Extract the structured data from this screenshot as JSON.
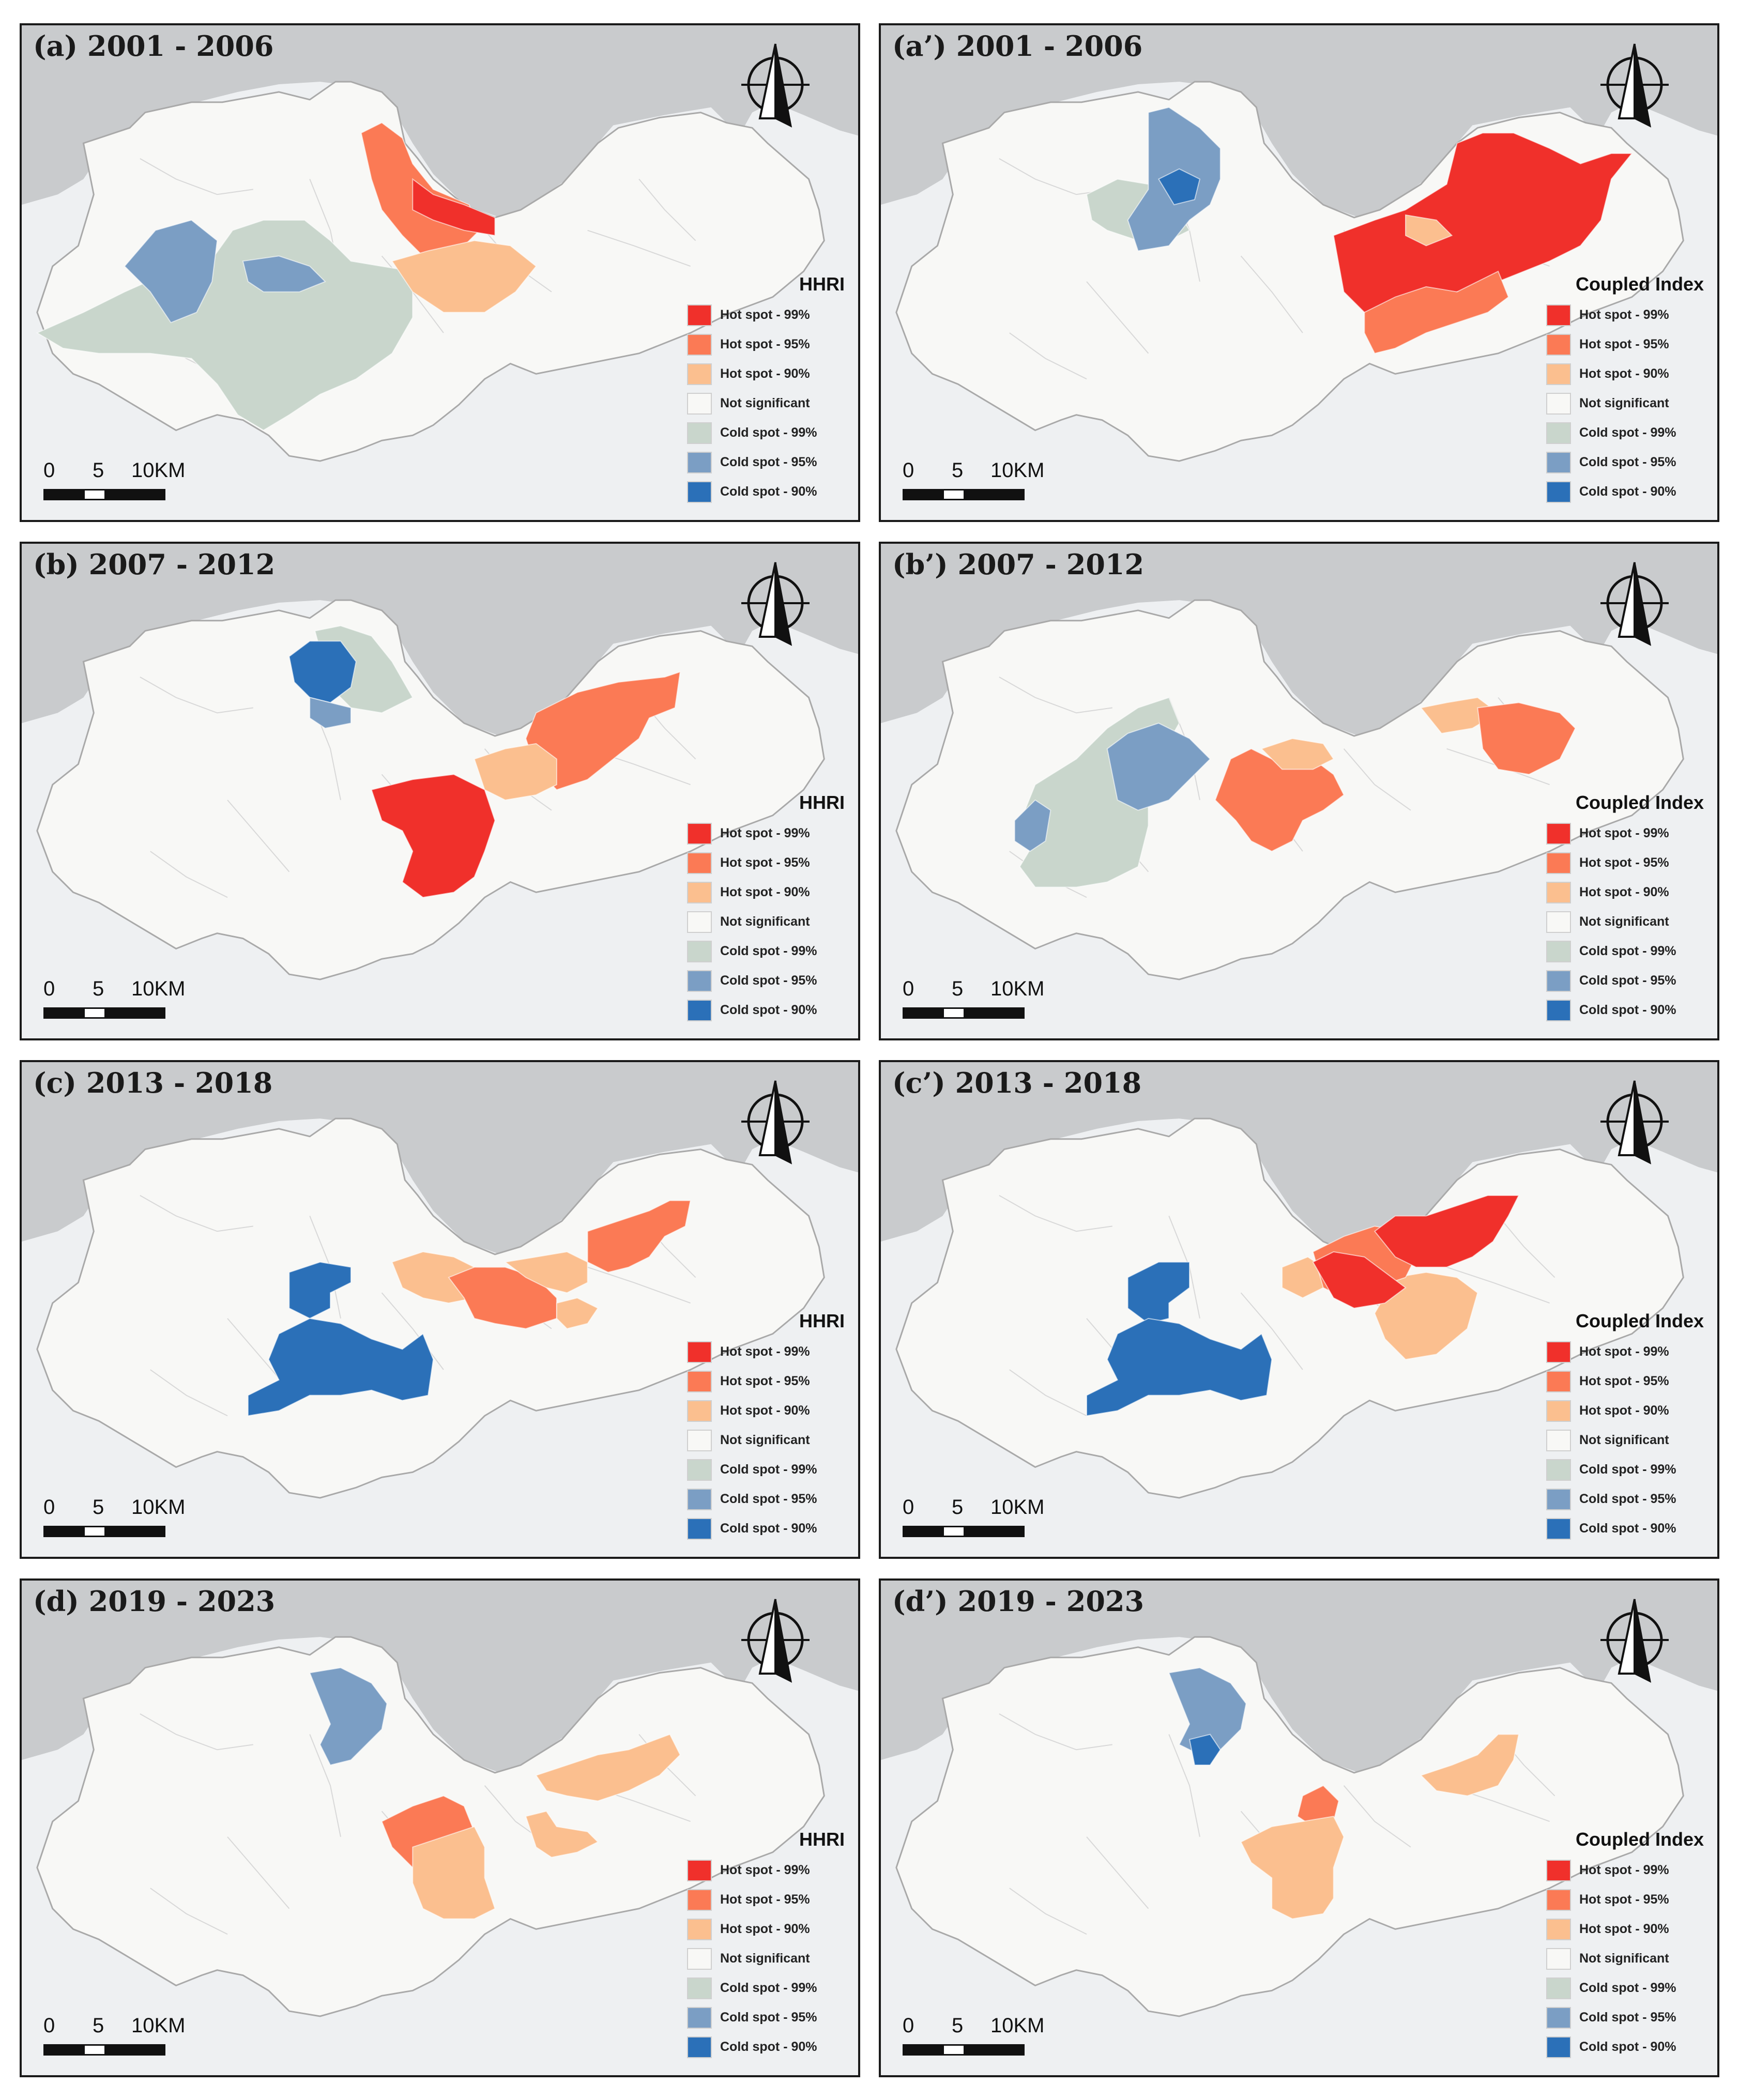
{
  "colors": {
    "hot99": "#f0302b",
    "hot95": "#fb7a55",
    "hot90": "#fbbf8f",
    "ns": "#f8f8f6",
    "cold99": "#c9d6cc",
    "cold95": "#7b9ec4",
    "cold90": "#2b70b8",
    "sea": "#c9cbcd",
    "land_bg": "#eef0f2"
  },
  "legend_items": [
    {
      "key": "hot99",
      "label": "Hot spot - 99%"
    },
    {
      "key": "hot95",
      "label": "Hot spot - 95%"
    },
    {
      "key": "hot90",
      "label": "Hot spot - 90%"
    },
    {
      "key": "ns",
      "label": "Not significant"
    },
    {
      "key": "cold99",
      "label": "Cold spot - 99%"
    },
    {
      "key": "cold95",
      "label": "Cold spot - 95%"
    },
    {
      "key": "cold90",
      "label": "Cold spot - 90%"
    }
  ],
  "scale_bar": {
    "zero": "0",
    "mid": "5",
    "end": "10KM"
  },
  "panels": [
    {
      "title": "(a) 2001 - 2006",
      "legend_title": "HHRI"
    },
    {
      "title": "(a’) 2001 - 2006",
      "legend_title": "Coupled Index"
    },
    {
      "title": "(b) 2007 - 2012",
      "legend_title": "HHRI"
    },
    {
      "title": "(b’) 2007 - 2012",
      "legend_title": "Coupled Index"
    },
    {
      "title": "(c) 2013 - 2018",
      "legend_title": "HHRI"
    },
    {
      "title": "(c’) 2013 - 2018",
      "legend_title": "Coupled Index"
    },
    {
      "title": "(d) 2019 - 2023",
      "legend_title": "HHRI"
    },
    {
      "title": "(d’) 2019 - 2023",
      "legend_title": "Coupled Index"
    }
  ]
}
